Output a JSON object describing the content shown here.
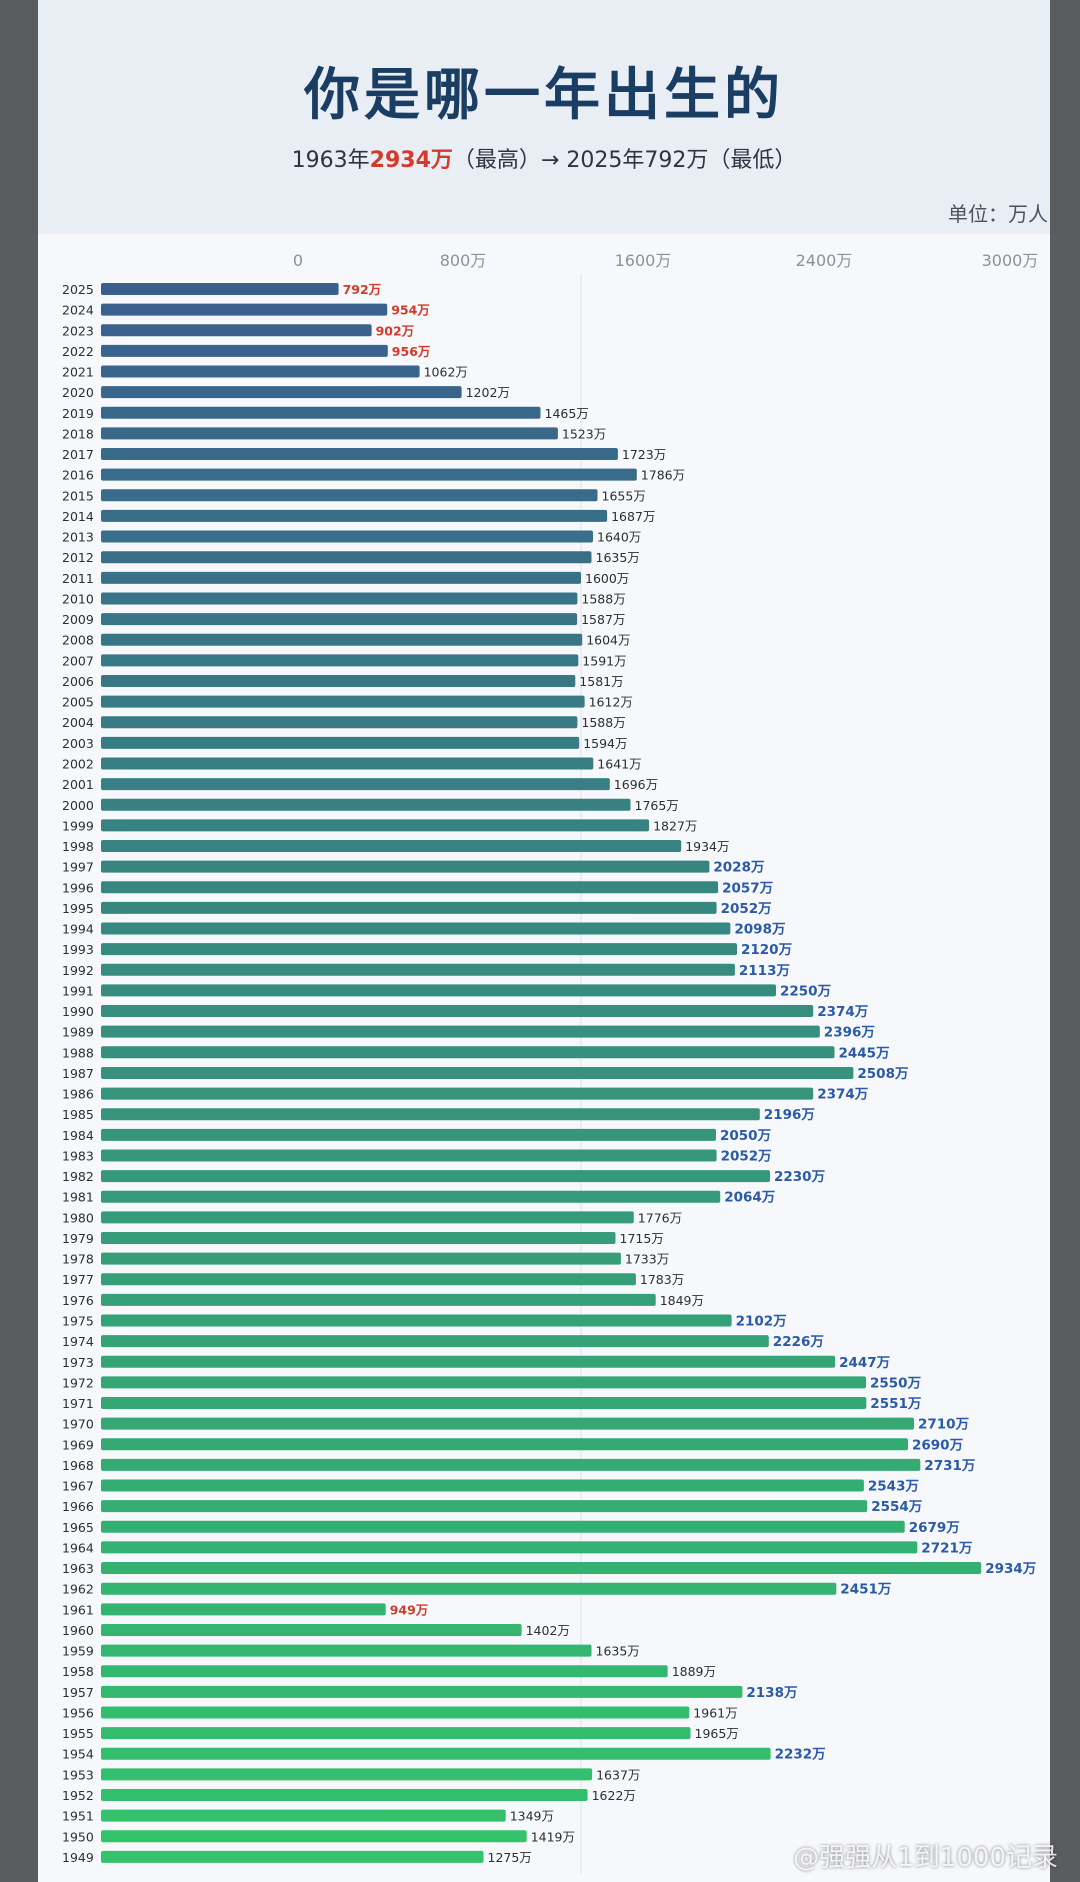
{
  "title": "你是哪一年出生的",
  "subtitle": {
    "part1": "1963年",
    "max_value": "2934万",
    "part2": "（最高）→ 2025年792万（最低）"
  },
  "unit_label": "单位：万人",
  "watermark": "@强强从1到1000记录",
  "colors": {
    "bar_top": "#3a5f8e",
    "bar_bottom": "#33c46b",
    "low_label": "#d33a2c",
    "high_label": "#2a5aa8"
  },
  "chart_data": {
    "type": "bar",
    "orientation": "horizontal",
    "title": "你是哪一年出生的",
    "unit": "万",
    "x_ticks": [
      "0",
      "800万",
      "1600万",
      "2400万",
      "3000万"
    ],
    "x_tick_values": [
      0,
      800,
      1600,
      2400,
      3000
    ],
    "xlim": [
      0,
      3000
    ],
    "grid": true,
    "categories": [
      "2025",
      "2024",
      "2023",
      "2022",
      "2021",
      "2020",
      "2019",
      "2018",
      "2017",
      "2016",
      "2015",
      "2014",
      "2013",
      "2012",
      "2011",
      "2010",
      "2009",
      "2008",
      "2007",
      "2006",
      "2005",
      "2004",
      "2003",
      "2002",
      "2001",
      "2000",
      "1999",
      "1998",
      "1997",
      "1996",
      "1995",
      "1994",
      "1993",
      "1992",
      "1991",
      "1990",
      "1989",
      "1988",
      "1987",
      "1986",
      "1985",
      "1984",
      "1983",
      "1982",
      "1981",
      "1980",
      "1979",
      "1978",
      "1977",
      "1976",
      "1975",
      "1974",
      "1973",
      "1972",
      "1971",
      "1970",
      "1969",
      "1968",
      "1967",
      "1966",
      "1965",
      "1964",
      "1963",
      "1962",
      "1961",
      "1960",
      "1959",
      "1958",
      "1957",
      "1956",
      "1955",
      "1954",
      "1953",
      "1952",
      "1951",
      "1950",
      "1949"
    ],
    "values": [
      792,
      954,
      902,
      956,
      1062,
      1202,
      1465,
      1523,
      1723,
      1786,
      1655,
      1687,
      1640,
      1635,
      1600,
      1588,
      1587,
      1604,
      1591,
      1581,
      1612,
      1588,
      1594,
      1641,
      1696,
      1765,
      1827,
      1934,
      2028,
      2057,
      2052,
      2098,
      2120,
      2113,
      2250,
      2374,
      2396,
      2445,
      2508,
      2374,
      2196,
      2050,
      2052,
      2230,
      2064,
      1776,
      1715,
      1733,
      1783,
      1849,
      2102,
      2226,
      2447,
      2550,
      2551,
      2710,
      2690,
      2731,
      2543,
      2554,
      2679,
      2721,
      2934,
      2451,
      949,
      1402,
      1635,
      1889,
      2138,
      1961,
      1965,
      2232,
      1637,
      1622,
      1349,
      1419,
      1275
    ]
  }
}
